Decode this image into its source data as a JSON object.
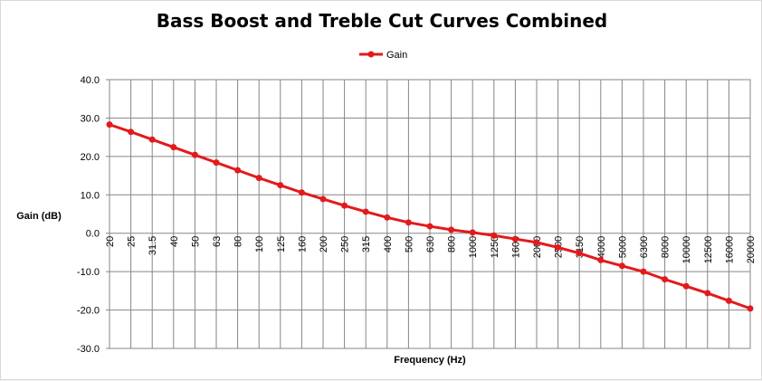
{
  "chart_data": {
    "type": "line",
    "title": "Bass Boost and Treble Cut Curves Combined",
    "xlabel": "Frequency (Hz)",
    "ylabel": "Gain (dB)",
    "ylim": [
      -30,
      40
    ],
    "y_ticks": [
      "40.0",
      "30.0",
      "20.0",
      "10.0",
      "0.0",
      "-10.0",
      "-20.0",
      "-30.0"
    ],
    "y_tick_values": [
      40,
      30,
      20,
      10,
      0,
      -10,
      -20,
      -30
    ],
    "categories": [
      "20",
      "25",
      "31.5",
      "40",
      "50",
      "63",
      "80",
      "100",
      "125",
      "160",
      "200",
      "250",
      "315",
      "400",
      "500",
      "630",
      "800",
      "1000",
      "1250",
      "1600",
      "2000",
      "2500",
      "3150",
      "4000",
      "5000",
      "6300",
      "8000",
      "10000",
      "12500",
      "16000",
      "20000"
    ],
    "series": [
      {
        "name": "Gain",
        "color": "#e31a1c",
        "values": [
          28.3,
          26.4,
          24.4,
          22.4,
          20.4,
          18.4,
          16.4,
          14.4,
          12.5,
          10.6,
          8.9,
          7.2,
          5.6,
          4.1,
          2.8,
          1.8,
          0.9,
          0.2,
          -0.6,
          -1.5,
          -2.4,
          -3.7,
          -5.2,
          -7.0,
          -8.5,
          -10.0,
          -12.0,
          -13.8,
          -15.6,
          -17.6,
          -19.6
        ]
      }
    ],
    "grid": true,
    "legend_position": "top-center"
  }
}
